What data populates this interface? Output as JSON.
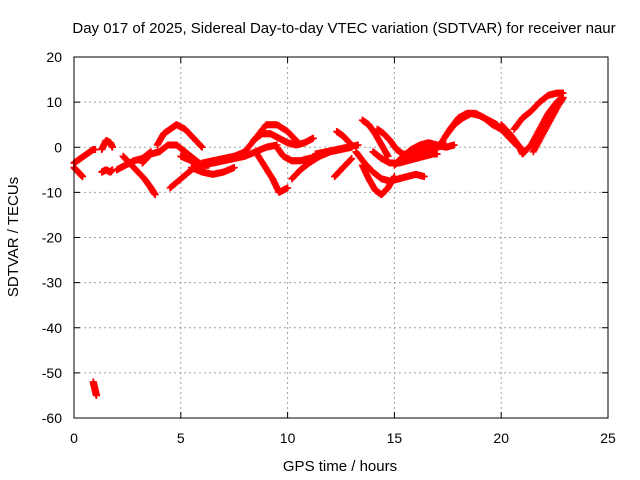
{
  "chart_data": {
    "type": "scatter",
    "title": "Day 017 of 2025, Sidereal Day-to-day VTEC variation (SDTVAR) for receiver naur",
    "xlabel": "GPS time / hours",
    "ylabel": "SDTVAR / TECUs",
    "xlim": [
      0,
      25
    ],
    "ylim": [
      -60,
      20
    ],
    "xticks": [
      0,
      5,
      10,
      15,
      20,
      25
    ],
    "yticks": [
      -60,
      -50,
      -40,
      -30,
      -20,
      -10,
      0,
      10,
      20
    ],
    "grid": true,
    "series_color": "#ff0000",
    "series": [
      {
        "name": "s1",
        "x": [
          0.0,
          0.3,
          0.6,
          0.9,
          1.0
        ],
        "y": [
          -3.5,
          -2.5,
          -1.5,
          -0.5,
          -0.5
        ]
      },
      {
        "name": "s2",
        "x": [
          0.0,
          0.2,
          0.4
        ],
        "y": [
          -4.5,
          -5.5,
          -6.5
        ]
      },
      {
        "name": "s3",
        "x": [
          0.9,
          0.95,
          1.0,
          1.05
        ],
        "y": [
          -52.0,
          -53.0,
          -54.0,
          -55.0
        ]
      },
      {
        "name": "s4",
        "x": [
          1.3,
          1.5,
          1.7,
          1.8
        ],
        "y": [
          -5.5,
          -5.0,
          -5.5,
          -5.0
        ]
      },
      {
        "name": "s5",
        "x": [
          1.3,
          1.5,
          1.7,
          1.8
        ],
        "y": [
          -0.5,
          1.5,
          1.0,
          0.0
        ]
      },
      {
        "name": "s6",
        "x": [
          2.3,
          2.6,
          2.9,
          3.3,
          3.6,
          3.8
        ],
        "y": [
          -2.0,
          -3.5,
          -5.0,
          -7.0,
          -9.0,
          -10.5
        ]
      },
      {
        "name": "s7",
        "x": [
          2.0,
          2.4,
          2.8,
          3.2,
          3.6
        ],
        "y": [
          -5.0,
          -4.0,
          -3.0,
          -2.5,
          -1.0
        ]
      },
      {
        "name": "s8",
        "x": [
          3.2,
          3.6,
          4.0,
          4.4,
          4.8,
          5.2,
          5.6,
          6.0,
          6.3
        ],
        "y": [
          -3.5,
          -1.5,
          -1.0,
          0.5,
          0.5,
          -1.0,
          -2.5,
          -4.0,
          -4.0
        ]
      },
      {
        "name": "s9",
        "x": [
          3.9,
          4.2,
          4.5,
          4.8,
          5.2,
          5.6,
          6.0
        ],
        "y": [
          0.5,
          3.0,
          4.0,
          5.0,
          4.0,
          2.0,
          0.0
        ]
      },
      {
        "name": "s10",
        "x": [
          4.5,
          5.0,
          5.5,
          6.0,
          6.5,
          7.0,
          7.5
        ],
        "y": [
          -9.0,
          -7.0,
          -5.0,
          -3.5,
          -3.0,
          -2.5,
          -2.0
        ]
      },
      {
        "name": "s11",
        "x": [
          5.0,
          5.5,
          6.0,
          6.5,
          7.0,
          7.5,
          8.0,
          8.5,
          9.0,
          9.5
        ],
        "y": [
          -2.0,
          -3.0,
          -4.0,
          -3.5,
          -3.0,
          -2.5,
          -2.0,
          -1.0,
          0.0,
          0.5
        ]
      },
      {
        "name": "s12",
        "x": [
          5.5,
          6.0,
          6.5,
          7.0,
          7.5
        ],
        "y": [
          -4.5,
          -5.5,
          -6.0,
          -5.5,
          -4.5
        ]
      },
      {
        "name": "s13",
        "x": [
          7.5,
          8.0,
          8.5,
          9.0,
          9.5,
          10.0,
          10.5
        ],
        "y": [
          -2.0,
          -1.0,
          2.0,
          5.0,
          5.0,
          3.5,
          1.0
        ]
      },
      {
        "name": "s14",
        "x": [
          8.4,
          8.8,
          9.2,
          9.6,
          10.0,
          10.4,
          10.8,
          11.2
        ],
        "y": [
          1.5,
          3.0,
          3.0,
          2.0,
          1.0,
          0.5,
          1.0,
          2.0
        ]
      },
      {
        "name": "s15",
        "x": [
          8.5,
          8.9,
          9.3,
          9.6,
          10.0
        ],
        "y": [
          -1.0,
          -4.0,
          -7.0,
          -10.0,
          -9.0
        ]
      },
      {
        "name": "s16",
        "x": [
          9.5,
          9.8,
          10.2,
          10.6,
          11.0,
          11.5
        ],
        "y": [
          0.0,
          -2.0,
          -3.0,
          -3.0,
          -2.5,
          -2.0
        ]
      },
      {
        "name": "s17",
        "x": [
          10.2,
          10.6,
          11.0,
          11.5,
          12.0,
          12.5,
          13.0
        ],
        "y": [
          -7.0,
          -5.0,
          -3.5,
          -2.0,
          -1.0,
          -0.5,
          0.0
        ]
      },
      {
        "name": "s18",
        "x": [
          11.3,
          11.8,
          12.3,
          12.8,
          13.3
        ],
        "y": [
          -1.5,
          -1.0,
          -0.5,
          0.0,
          0.5
        ]
      },
      {
        "name": "s19",
        "x": [
          12.2,
          12.6,
          13.0
        ],
        "y": [
          -6.5,
          -4.5,
          -2.5
        ]
      },
      {
        "name": "s20",
        "x": [
          12.3,
          12.6,
          12.9
        ],
        "y": [
          3.5,
          2.5,
          1.0
        ]
      },
      {
        "name": "s21",
        "x": [
          13.5,
          13.8,
          14.1,
          14.4,
          14.7
        ],
        "y": [
          6.0,
          5.0,
          3.0,
          0.5,
          -2.0
        ]
      },
      {
        "name": "s22",
        "x": [
          13.2,
          13.6,
          14.0,
          14.4,
          14.8,
          15.2,
          15.6,
          16.0,
          16.4
        ],
        "y": [
          -1.0,
          -3.5,
          -5.5,
          -7.0,
          -7.5,
          -7.0,
          -6.5,
          -6.0,
          -6.5
        ]
      },
      {
        "name": "s23",
        "x": [
          13.5,
          13.8,
          14.1,
          14.4,
          14.7,
          15.0
        ],
        "y": [
          -4.0,
          -7.0,
          -9.5,
          -10.5,
          -9.0,
          -6.5
        ]
      },
      {
        "name": "s24",
        "x": [
          14.0,
          14.4,
          14.8,
          15.2,
          15.6,
          16.0,
          16.4,
          16.8,
          17.0
        ],
        "y": [
          -1.0,
          -2.5,
          -3.5,
          -3.5,
          -3.0,
          -2.5,
          -2.0,
          -1.5,
          -1.5
        ]
      },
      {
        "name": "s25",
        "x": [
          14.2,
          14.5,
          14.8,
          15.1,
          15.4,
          15.8,
          16.2,
          16.6,
          17.0,
          17.4
        ],
        "y": [
          4.0,
          3.0,
          1.5,
          -0.5,
          -1.5,
          -1.5,
          -1.0,
          -0.5,
          0.0,
          0.5
        ]
      },
      {
        "name": "s26",
        "x": [
          15.0,
          15.4,
          15.8,
          16.2,
          16.6,
          17.0,
          17.4,
          17.8
        ],
        "y": [
          -4.0,
          -2.0,
          -0.5,
          0.5,
          1.0,
          0.5,
          0.0,
          0.5
        ]
      },
      {
        "name": "s27",
        "x": [
          16.4,
          16.8,
          17.2,
          17.6,
          18.0,
          18.4,
          18.8,
          19.2,
          19.6,
          20.0
        ],
        "y": [
          -1.5,
          -1.0,
          1.0,
          4.0,
          6.5,
          7.5,
          7.5,
          6.5,
          5.0,
          4.0
        ]
      },
      {
        "name": "s28",
        "x": [
          17.4,
          17.8,
          18.2,
          18.6,
          19.0,
          19.4,
          19.8,
          20.2,
          20.6,
          21.0
        ],
        "y": [
          2.5,
          5.0,
          6.5,
          7.5,
          7.0,
          6.0,
          5.0,
          3.0,
          1.0,
          -0.5
        ]
      },
      {
        "name": "s29",
        "x": [
          20.0,
          20.4,
          20.8,
          21.0,
          21.4,
          21.8,
          22.2,
          22.6,
          22.9
        ],
        "y": [
          5.0,
          3.0,
          0.5,
          -1.5,
          0.5,
          4.0,
          7.5,
          10.0,
          11.0
        ]
      },
      {
        "name": "s30",
        "x": [
          20.6,
          21.0,
          21.4,
          21.8,
          22.2,
          22.6,
          22.9
        ],
        "y": [
          4.0,
          6.5,
          8.0,
          10.0,
          11.5,
          12.0,
          12.0
        ]
      },
      {
        "name": "s31",
        "x": [
          21.5,
          21.9,
          22.3,
          22.7,
          22.9
        ],
        "y": [
          -1.0,
          2.5,
          6.0,
          9.5,
          11.0
        ]
      }
    ]
  }
}
